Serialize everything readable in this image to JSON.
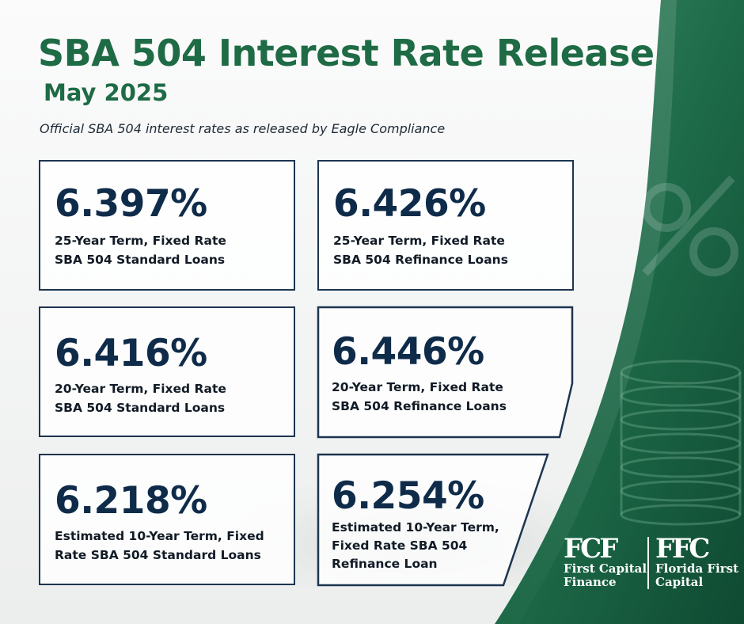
{
  "header": {
    "title": "SBA 504 Interest Rate Release",
    "subtitle": "May 2025",
    "tagline": "Official SBA 504 interest rates as released by Eagle Compliance"
  },
  "cards": [
    {
      "rate": "6.397%",
      "line1": "25-Year Term, Fixed Rate",
      "line2": "SBA 504 Standard Loans",
      "line3": ""
    },
    {
      "rate": "6.426%",
      "line1": "25-Year Term, Fixed Rate",
      "line2": "SBA 504 Refinance Loans",
      "line3": ""
    },
    {
      "rate": "6.416%",
      "line1": "20-Year Term, Fixed Rate",
      "line2": "SBA 504 Standard Loans",
      "line3": ""
    },
    {
      "rate": "6.446%",
      "line1": "20-Year Term, Fixed Rate",
      "line2": "SBA 504 Refinance Loans",
      "line3": ""
    },
    {
      "rate": "6.218%",
      "line1": "Estimated 10-Year Term, Fixed",
      "line2": "Rate SBA 504 Standard Loans",
      "line3": ""
    },
    {
      "rate": "6.254%",
      "line1": "Estimated 10-Year Term,",
      "line2": "Fixed Rate SBA 504",
      "line3": "Refinance Loan"
    }
  ],
  "logos": {
    "fcf": {
      "mark": "FCF",
      "line1": "First Capital",
      "line2": "Finance"
    },
    "ffc": {
      "mark": "FFC",
      "line1": "Florida First",
      "line2": "Capital"
    }
  },
  "colors": {
    "green": "#1e6b45",
    "navy": "#0f2b4a",
    "panel_green": "#1a6a49"
  }
}
